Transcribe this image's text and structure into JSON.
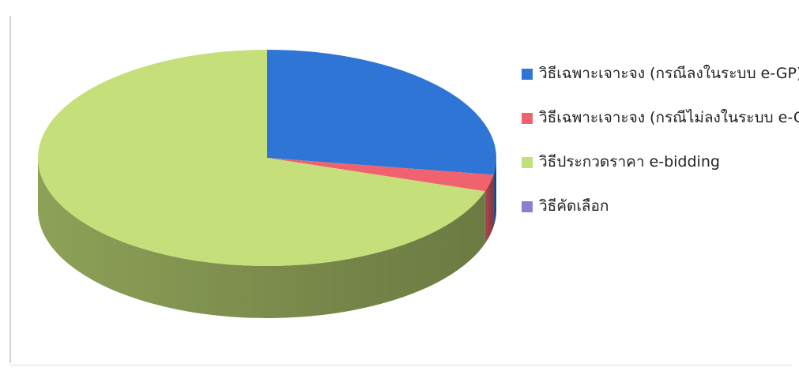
{
  "chart_data": {
    "type": "pie",
    "style": "3d",
    "title": "",
    "legend_position": "right",
    "slices": [
      {
        "label": "วิธีเฉพาะเจาะจง (กรณีลงในระบบ e-GP)",
        "value": 27.5,
        "color": "#2e75d6"
      },
      {
        "label": "วิธีเฉพาะเจาะจง (กรณีไม่ลงในระบบ e-GP)",
        "value": 2.5,
        "color": "#f0636e"
      },
      {
        "label": "วิธีประกวดราคา e-bidding",
        "value": 70.0,
        "color": "#c5e07a"
      },
      {
        "label": "วิธีคัดเลือก",
        "value": 0.0,
        "color": "#8b7fd0"
      }
    ]
  }
}
